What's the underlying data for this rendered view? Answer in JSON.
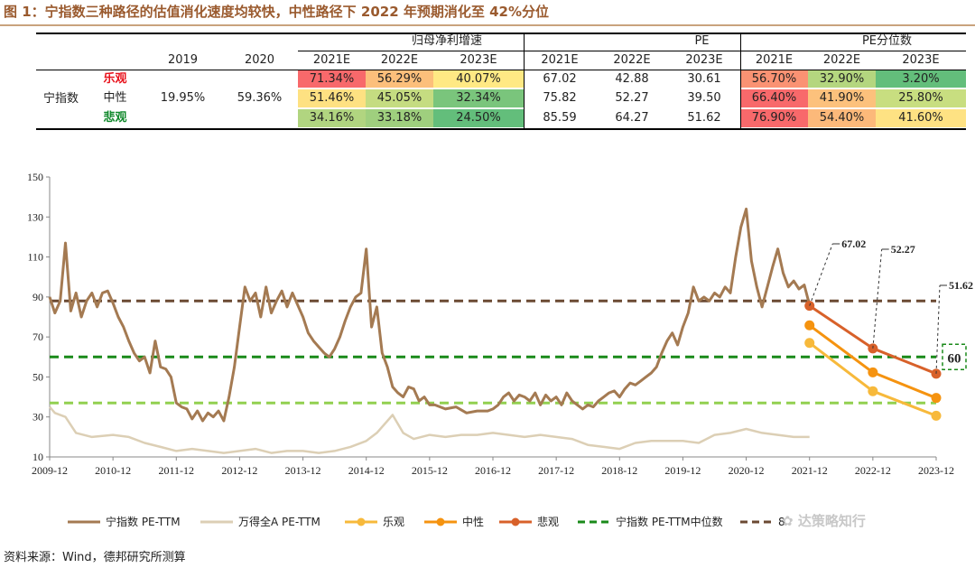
{
  "title": "图 1：宁指数三种路径的估值消化速度均较快，中性路径下 2022 年预期消化至 42%分位",
  "table": {
    "group_headers": [
      "归母净利增速",
      "PE",
      "PE分位数"
    ],
    "year_headers": [
      "2019",
      "2020",
      "2021E",
      "2022E",
      "2023E",
      "2021E",
      "2022E",
      "2023E",
      "2021E",
      "2022E",
      "2023E"
    ],
    "index_label": "宁指数",
    "rows": [
      {
        "scenario": "乐观",
        "color": "#e8121c",
        "bold": true,
        "growth": [
          "",
          "",
          "71.34%",
          "56.29%",
          "40.07%"
        ],
        "growth_bg": [
          "",
          "",
          "#f8696b",
          "#fcbf7b",
          "#ffe984"
        ],
        "pe": [
          "67.02",
          "42.88",
          "30.61"
        ],
        "pct": [
          "56.70%",
          "32.90%",
          "3.20%"
        ],
        "pct_bg": [
          "#fa9273",
          "#b4d67f",
          "#63be7b"
        ]
      },
      {
        "scenario": "中性",
        "color": "#222222",
        "bold": false,
        "growth": [
          "19.95%",
          "59.36%",
          "51.46%",
          "45.05%",
          "32.34%"
        ],
        "growth_bg": [
          "",
          "",
          "#fee182",
          "#c5dc81",
          "#7ac57c"
        ],
        "pe": [
          "75.82",
          "52.27",
          "39.50"
        ],
        "pct": [
          "66.40%",
          "41.90%",
          "25.80%"
        ],
        "pct_bg": [
          "#f8696b",
          "#fcc17c",
          "#c8de80"
        ]
      },
      {
        "scenario": "悲观",
        "color": "#11892c",
        "bold": true,
        "growth": [
          "",
          "",
          "34.16%",
          "33.18%",
          "24.50%"
        ],
        "growth_bg": [
          "",
          "",
          "#b1d580",
          "#9fcf7e",
          "#63be7b"
        ],
        "pe": [
          "85.59",
          "64.27",
          "51.62"
        ],
        "pct": [
          "76.90%",
          "54.40%",
          "41.60%"
        ],
        "pct_bg": [
          "#f8696b",
          "#fcb97a",
          "#fee283"
        ]
      }
    ]
  },
  "chart_data": {
    "type": "line",
    "ylim": [
      10,
      150
    ],
    "yticks": [
      10,
      30,
      50,
      70,
      90,
      110,
      130,
      150
    ],
    "xlim": [
      "2009-12",
      "2023-12"
    ],
    "xticks": [
      "2009-12",
      "2010-12",
      "2011-12",
      "2012-12",
      "2013-12",
      "2014-12",
      "2015-12",
      "2016-12",
      "2017-12",
      "2018-12",
      "2019-12",
      "2020-12",
      "2021-12",
      "2022-12",
      "2023-12"
    ],
    "colors": {
      "pe_ttm": "#a47a52",
      "wind_a": "#dccfb5",
      "optimistic": "#f7b93b",
      "neutral": "#f59310",
      "pessimistic": "#d8612a",
      "median": "#1a8a1a",
      "median_light": "#92d050",
      "p80": "#6b4a33"
    },
    "series": [
      {
        "key": "pe_ttm",
        "name": "宁指数 PE-TTM",
        "points": [
          [
            "2009-12",
            90
          ],
          [
            "2010-01",
            82
          ],
          [
            "2010-02",
            88
          ],
          [
            "2010-03",
            117
          ],
          [
            "2010-04",
            83
          ],
          [
            "2010-05",
            92
          ],
          [
            "2010-06",
            80
          ],
          [
            "2010-07",
            88
          ],
          [
            "2010-08",
            92
          ],
          [
            "2010-09",
            85
          ],
          [
            "2010-10",
            92
          ],
          [
            "2010-11",
            93
          ],
          [
            "2010-12",
            87
          ],
          [
            "2011-01",
            80
          ],
          [
            "2011-02",
            75
          ],
          [
            "2011-03",
            68
          ],
          [
            "2011-04",
            62
          ],
          [
            "2011-05",
            58
          ],
          [
            "2011-06",
            60
          ],
          [
            "2011-07",
            52
          ],
          [
            "2011-08",
            68
          ],
          [
            "2011-09",
            55
          ],
          [
            "2011-10",
            54
          ],
          [
            "2011-11",
            50
          ],
          [
            "2011-12",
            37
          ],
          [
            "2012-01",
            35
          ],
          [
            "2012-02",
            34
          ],
          [
            "2012-03",
            29
          ],
          [
            "2012-04",
            33
          ],
          [
            "2012-05",
            28
          ],
          [
            "2012-06",
            32
          ],
          [
            "2012-07",
            30
          ],
          [
            "2012-08",
            33
          ],
          [
            "2012-09",
            28
          ],
          [
            "2012-10",
            40
          ],
          [
            "2012-11",
            55
          ],
          [
            "2012-12",
            75
          ],
          [
            "2013-01",
            95
          ],
          [
            "2013-02",
            88
          ],
          [
            "2013-03",
            92
          ],
          [
            "2013-04",
            80
          ],
          [
            "2013-05",
            95
          ],
          [
            "2013-06",
            82
          ],
          [
            "2013-07",
            88
          ],
          [
            "2013-08",
            93
          ],
          [
            "2013-09",
            85
          ],
          [
            "2013-10",
            92
          ],
          [
            "2013-11",
            86
          ],
          [
            "2013-12",
            80
          ],
          [
            "2014-01",
            72
          ],
          [
            "2014-02",
            68
          ],
          [
            "2014-03",
            65
          ],
          [
            "2014-04",
            62
          ],
          [
            "2014-05",
            60
          ],
          [
            "2014-06",
            64
          ],
          [
            "2014-07",
            70
          ],
          [
            "2014-08",
            78
          ],
          [
            "2014-09",
            85
          ],
          [
            "2014-10",
            90
          ],
          [
            "2014-11",
            92
          ],
          [
            "2014-12",
            114
          ],
          [
            "2015-01",
            75
          ],
          [
            "2015-02",
            85
          ],
          [
            "2015-03",
            62
          ],
          [
            "2015-04",
            55
          ],
          [
            "2015-05",
            45
          ],
          [
            "2015-06",
            42
          ],
          [
            "2015-07",
            40
          ],
          [
            "2015-08",
            45
          ],
          [
            "2015-09",
            44
          ],
          [
            "2015-10",
            38
          ],
          [
            "2015-11",
            40
          ],
          [
            "2015-12",
            36
          ],
          [
            "2016-01",
            36
          ],
          [
            "2016-03",
            34
          ],
          [
            "2016-05",
            35
          ],
          [
            "2016-07",
            32
          ],
          [
            "2016-09",
            33
          ],
          [
            "2016-11",
            33
          ],
          [
            "2016-12",
            34
          ],
          [
            "2017-01",
            36
          ],
          [
            "2017-02",
            40
          ],
          [
            "2017-03",
            42
          ],
          [
            "2017-04",
            38
          ],
          [
            "2017-05",
            41
          ],
          [
            "2017-06",
            40
          ],
          [
            "2017-07",
            38
          ],
          [
            "2017-08",
            42
          ],
          [
            "2017-09",
            36
          ],
          [
            "2017-10",
            41
          ],
          [
            "2017-11",
            38
          ],
          [
            "2017-12",
            40
          ],
          [
            "2018-01",
            36
          ],
          [
            "2018-02",
            42
          ],
          [
            "2018-03",
            38
          ],
          [
            "2018-04",
            36
          ],
          [
            "2018-05",
            34
          ],
          [
            "2018-06",
            36
          ],
          [
            "2018-07",
            35
          ],
          [
            "2018-08",
            38
          ],
          [
            "2018-09",
            40
          ],
          [
            "2018-10",
            42
          ],
          [
            "2018-11",
            43
          ],
          [
            "2018-12",
            40
          ],
          [
            "2019-01",
            44
          ],
          [
            "2019-02",
            47
          ],
          [
            "2019-03",
            46
          ],
          [
            "2019-04",
            48
          ],
          [
            "2019-05",
            50
          ],
          [
            "2019-06",
            52
          ],
          [
            "2019-07",
            55
          ],
          [
            "2019-08",
            62
          ],
          [
            "2019-09",
            68
          ],
          [
            "2019-10",
            72
          ],
          [
            "2019-11",
            66
          ],
          [
            "2019-12",
            75
          ],
          [
            "2020-01",
            82
          ],
          [
            "2020-02",
            95
          ],
          [
            "2020-03",
            88
          ],
          [
            "2020-04",
            90
          ],
          [
            "2020-05",
            88
          ],
          [
            "2020-06",
            92
          ],
          [
            "2020-07",
            90
          ],
          [
            "2020-08",
            95
          ],
          [
            "2020-09",
            92
          ],
          [
            "2020-10",
            110
          ],
          [
            "2020-11",
            125
          ],
          [
            "2020-12",
            134
          ],
          [
            "2021-01",
            108
          ],
          [
            "2021-02",
            95
          ],
          [
            "2021-03",
            85
          ],
          [
            "2021-04",
            95
          ],
          [
            "2021-05",
            105
          ],
          [
            "2021-06",
            114
          ],
          [
            "2021-07",
            102
          ],
          [
            "2021-08",
            95
          ],
          [
            "2021-09",
            98
          ],
          [
            "2021-10",
            94
          ],
          [
            "2021-11",
            96
          ],
          [
            "2021-12",
            86
          ]
        ]
      },
      {
        "key": "wind_a",
        "name": "万得全A PE-TTM",
        "points": [
          [
            "2009-12",
            35
          ],
          [
            "2010-01",
            32
          ],
          [
            "2010-03",
            30
          ],
          [
            "2010-05",
            22
          ],
          [
            "2010-08",
            20
          ],
          [
            "2010-12",
            21
          ],
          [
            "2011-03",
            20
          ],
          [
            "2011-06",
            17
          ],
          [
            "2011-09",
            15
          ],
          [
            "2011-12",
            13
          ],
          [
            "2012-03",
            14
          ],
          [
            "2012-06",
            13
          ],
          [
            "2012-09",
            12
          ],
          [
            "2012-12",
            13
          ],
          [
            "2013-03",
            14
          ],
          [
            "2013-06",
            12
          ],
          [
            "2013-09",
            13
          ],
          [
            "2013-12",
            13
          ],
          [
            "2014-03",
            12
          ],
          [
            "2014-06",
            13
          ],
          [
            "2014-09",
            15
          ],
          [
            "2014-12",
            18
          ],
          [
            "2015-02",
            22
          ],
          [
            "2015-05",
            31
          ],
          [
            "2015-07",
            22
          ],
          [
            "2015-09",
            19
          ],
          [
            "2015-12",
            21
          ],
          [
            "2016-03",
            20
          ],
          [
            "2016-06",
            21
          ],
          [
            "2016-09",
            21
          ],
          [
            "2016-12",
            22
          ],
          [
            "2017-03",
            21
          ],
          [
            "2017-06",
            20
          ],
          [
            "2017-09",
            21
          ],
          [
            "2017-12",
            20
          ],
          [
            "2018-03",
            19
          ],
          [
            "2018-06",
            16
          ],
          [
            "2018-09",
            15
          ],
          [
            "2018-12",
            14
          ],
          [
            "2019-03",
            17
          ],
          [
            "2019-06",
            18
          ],
          [
            "2019-09",
            18
          ],
          [
            "2019-12",
            18
          ],
          [
            "2020-03",
            17
          ],
          [
            "2020-06",
            21
          ],
          [
            "2020-09",
            22
          ],
          [
            "2020-12",
            24
          ],
          [
            "2021-03",
            22
          ],
          [
            "2021-06",
            21
          ],
          [
            "2021-09",
            20
          ],
          [
            "2021-12",
            20
          ]
        ]
      },
      {
        "key": "optimistic",
        "name": "乐观",
        "points": [
          [
            "2021-12",
            67.02
          ],
          [
            "2022-12",
            42.88
          ],
          [
            "2023-12",
            30.61
          ]
        ]
      },
      {
        "key": "neutral",
        "name": "中性",
        "points": [
          [
            "2021-12",
            75.82
          ],
          [
            "2022-12",
            52.27
          ],
          [
            "2023-12",
            39.5
          ]
        ]
      },
      {
        "key": "pessimistic",
        "name": "悲观",
        "points": [
          [
            "2021-12",
            85.59
          ],
          [
            "2022-12",
            64.27
          ],
          [
            "2023-12",
            51.62
          ]
        ]
      }
    ],
    "reference_lines": [
      {
        "key": "median",
        "name": "宁指数 PE-TTM中位数",
        "value": 60
      },
      {
        "key": "median_light",
        "name": "",
        "value": 37
      },
      {
        "key": "p80",
        "name": "8",
        "value": 88
      }
    ],
    "annotations": [
      "67.02",
      "52.27",
      "51.62",
      "60"
    ],
    "legend": [
      "宁指数 PE-TTM",
      "万得全A PE-TTM",
      "乐观",
      "中性",
      "悲观",
      "宁指数 PE-TTM中位数",
      "8"
    ],
    "legend_position": "bottom"
  },
  "watermark": "达策略知行",
  "source": "资料来源：Wind，德邦研究所测算"
}
